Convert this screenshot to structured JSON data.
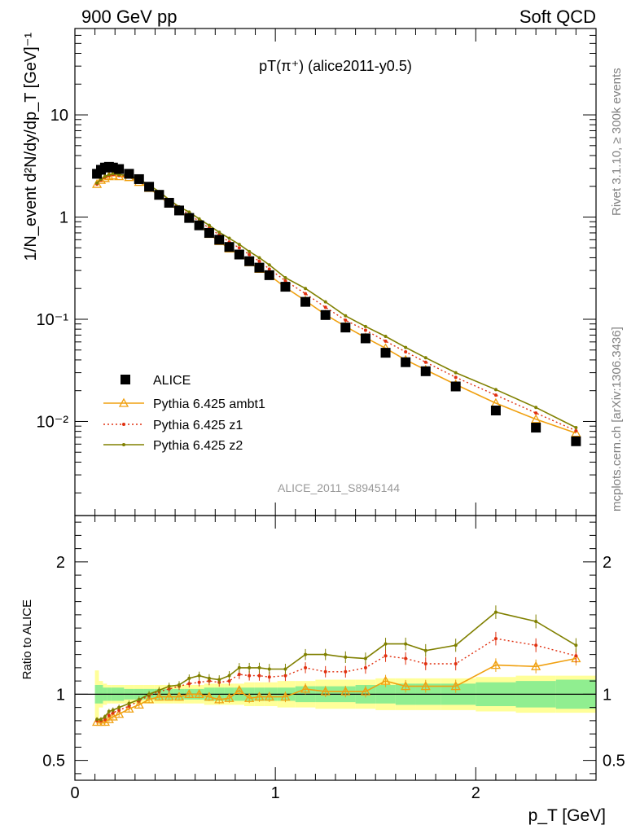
{
  "header": {
    "left": "900 GeV pp",
    "right": "Soft QCD"
  },
  "side_text": {
    "top": "Rivet 3.1.10, ≥ 300k events",
    "bottom": "mcplots.cern.ch [arXiv:1306.3436]"
  },
  "chart_data": {
    "type": "scatter",
    "title": "pT(π⁺) (alice2011-y0.5)",
    "watermark": "ALICE_2011_S8945144",
    "xlabel": "p_T [GeV]",
    "ylabel": "1/N_event d²N/dy/dp_T [GeV]⁻¹",
    "ratio_ylabel": "Ratio to ALICE",
    "xlim": [
      0,
      2.6
    ],
    "ylim": [
      0.0012,
      70
    ],
    "yscale": "log",
    "ratio_ylim": [
      0.35,
      2.35
    ],
    "x_ticks": [
      "0",
      "1",
      "2"
    ],
    "y_ticks": [
      "10⁻²",
      "10⁻¹",
      "1",
      "10"
    ],
    "ratio_ticks": [
      "0.5",
      "1",
      "2"
    ],
    "legend_position": "lower-left",
    "x": [
      0.11,
      0.13,
      0.15,
      0.17,
      0.19,
      0.22,
      0.27,
      0.32,
      0.37,
      0.42,
      0.47,
      0.52,
      0.57,
      0.62,
      0.67,
      0.72,
      0.77,
      0.82,
      0.87,
      0.92,
      0.97,
      1.05,
      1.15,
      1.25,
      1.35,
      1.45,
      1.55,
      1.65,
      1.75,
      1.9,
      2.1,
      2.3,
      2.5
    ],
    "series": [
      {
        "name": "ALICE",
        "values": [
          2.65,
          2.9,
          3.05,
          3.1,
          3.05,
          2.95,
          2.65,
          2.35,
          1.98,
          1.65,
          1.38,
          1.16,
          0.98,
          0.83,
          0.7,
          0.6,
          0.51,
          0.43,
          0.37,
          0.32,
          0.27,
          0.208,
          0.148,
          0.11,
          0.083,
          0.065,
          0.047,
          0.038,
          0.031,
          0.022,
          0.0128,
          0.0087,
          0.0064
        ],
        "ratio": [
          1,
          1,
          1,
          1,
          1,
          1,
          1,
          1,
          1,
          1,
          1,
          1,
          1,
          1,
          1,
          1,
          1,
          1,
          1,
          1,
          1,
          1,
          1,
          1,
          1,
          1,
          1,
          1,
          1,
          1,
          1,
          1,
          1
        ]
      },
      {
        "name": "Pythia 6.425 ambt1",
        "values": [
          2.1,
          2.3,
          2.4,
          2.5,
          2.55,
          2.5,
          2.45,
          2.2,
          1.92,
          1.62,
          1.35,
          1.14,
          0.98,
          0.84,
          0.68,
          0.58,
          0.49,
          0.43,
          0.36,
          0.31,
          0.27,
          0.205,
          0.152,
          0.111,
          0.085,
          0.066,
          0.052,
          0.04,
          0.032,
          0.023,
          0.0151,
          0.0105,
          0.0077
        ],
        "ratio": [
          0.79,
          0.79,
          0.79,
          0.81,
          0.83,
          0.85,
          0.89,
          0.92,
          0.96,
          0.98,
          0.98,
          0.98,
          1,
          1,
          0.98,
          0.96,
          0.97,
          1.03,
          0.97,
          0.98,
          0.98,
          0.98,
          1.04,
          1.02,
          1.02,
          1.02,
          1.1,
          1.06,
          1.06,
          1.06,
          1.22,
          1.21,
          1.27
        ]
      },
      {
        "name": "Pythia 6.425 z1",
        "values": [
          2.1,
          2.3,
          2.45,
          2.55,
          2.6,
          2.55,
          2.5,
          2.3,
          1.98,
          1.7,
          1.45,
          1.24,
          1.06,
          0.91,
          0.78,
          0.67,
          0.57,
          0.5,
          0.43,
          0.37,
          0.31,
          0.238,
          0.178,
          0.131,
          0.098,
          0.078,
          0.061,
          0.048,
          0.038,
          0.027,
          0.0181,
          0.0121,
          0.0081
        ],
        "ratio": [
          0.8,
          0.8,
          0.81,
          0.84,
          0.86,
          0.88,
          0.91,
          0.95,
          0.99,
          1.02,
          1.04,
          1.06,
          1.08,
          1.09,
          1.1,
          1.09,
          1.1,
          1.15,
          1.14,
          1.14,
          1.13,
          1.14,
          1.2,
          1.17,
          1.17,
          1.2,
          1.29,
          1.27,
          1.23,
          1.23,
          1.42,
          1.37,
          1.29
        ]
      },
      {
        "name": "Pythia 6.425 z2",
        "values": [
          2.15,
          2.35,
          2.5,
          2.6,
          2.65,
          2.6,
          2.55,
          2.35,
          2.05,
          1.78,
          1.48,
          1.26,
          1.12,
          0.96,
          0.83,
          0.71,
          0.62,
          0.54,
          0.46,
          0.4,
          0.34,
          0.255,
          0.2,
          0.148,
          0.108,
          0.085,
          0.068,
          0.053,
          0.042,
          0.03,
          0.0205,
          0.0137,
          0.0087
        ],
        "ratio": [
          0.81,
          0.81,
          0.83,
          0.87,
          0.88,
          0.9,
          0.93,
          0.96,
          1,
          1.03,
          1.06,
          1.07,
          1.12,
          1.14,
          1.12,
          1.11,
          1.14,
          1.2,
          1.2,
          1.2,
          1.19,
          1.19,
          1.3,
          1.3,
          1.28,
          1.27,
          1.38,
          1.38,
          1.33,
          1.37,
          1.62,
          1.55,
          1.37
        ]
      }
    ],
    "band_stat": [
      0.07,
      0.07,
      0.05,
      0.05,
      0.05,
      0.05,
      0.04,
      0.04,
      0.04,
      0.04,
      0.04,
      0.04,
      0.04,
      0.04,
      0.05,
      0.05,
      0.05,
      0.05,
      0.05,
      0.05,
      0.05,
      0.05,
      0.06,
      0.06,
      0.06,
      0.07,
      0.07,
      0.08,
      0.08,
      0.08,
      0.09,
      0.1,
      0.11
    ],
    "band_syst": [
      0.18,
      0.1,
      0.08,
      0.07,
      0.07,
      0.07,
      0.07,
      0.07,
      0.07,
      0.07,
      0.07,
      0.07,
      0.07,
      0.07,
      0.08,
      0.08,
      0.08,
      0.08,
      0.09,
      0.09,
      0.09,
      0.1,
      0.1,
      0.11,
      0.11,
      0.11,
      0.12,
      0.12,
      0.12,
      0.12,
      0.13,
      0.14,
      0.14
    ],
    "colors": {
      "ALICE": "#000000",
      "ambt1": "#f0a010",
      "z1": "#e03010",
      "z2": "#808000",
      "band_inner": "#90ee90",
      "band_outer": "#ffff99"
    }
  }
}
